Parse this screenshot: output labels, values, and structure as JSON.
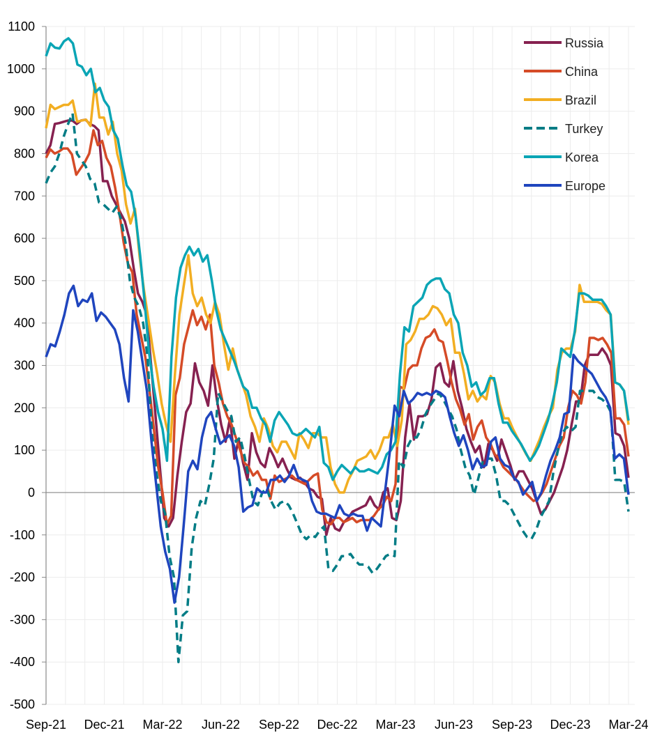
{
  "chart_data": {
    "type": "line",
    "title": "",
    "xlabel": "",
    "ylabel": "",
    "ylim": [
      -500,
      1100
    ],
    "yticks": [
      1100,
      1000,
      900,
      800,
      700,
      600,
      500,
      400,
      300,
      200,
      100,
      0,
      -100,
      -200,
      -300,
      -400,
      -500
    ],
    "ytick_labels": [
      "1100",
      "1000",
      "900",
      "800",
      "700",
      "600",
      "500",
      "400",
      "300",
      "200",
      "100",
      "0",
      "-100",
      "-200",
      "-300",
      "-400",
      "-500"
    ],
    "x_unit": "weeks since Sep-21",
    "xlim": [
      0,
      130
    ],
    "xticks": [
      0,
      13,
      26,
      39,
      52,
      65,
      78,
      91,
      104,
      117,
      130
    ],
    "xtick_labels": [
      "Sep-21",
      "Dec-21",
      "Mar-22",
      "Jun-22",
      "Sep-22",
      "Dec-22",
      "Mar-23",
      "Jun-23",
      "Sep-23",
      "Dec-23",
      "Mar-24"
    ],
    "grid": true,
    "zero_line": true,
    "legend_position": "top-right",
    "series": [
      {
        "name": "Russia",
        "color": "#862150",
        "dash": false,
        "values": [
          800,
          820,
          870,
          872,
          875,
          878,
          878,
          870,
          878,
          880,
          870,
          865,
          855,
          735,
          735,
          700,
          680,
          660,
          640,
          600,
          530,
          470,
          450,
          420,
          300,
          180,
          60,
          -60,
          -80,
          -60,
          40,
          120,
          190,
          210,
          305,
          260,
          240,
          205,
          300,
          220,
          160,
          120,
          175,
          80,
          125,
          70,
          30,
          140,
          95,
          70,
          60,
          105,
          85,
          60,
          80,
          55,
          35,
          30,
          35,
          25,
          10,
          5,
          -10,
          -15,
          -100,
          -60,
          -85,
          -90,
          -70,
          -60,
          -45,
          -40,
          -35,
          -30,
          -10,
          -30,
          -40,
          0,
          10,
          -60,
          -65,
          -20,
          130,
          210,
          125,
          180,
          180,
          185,
          220,
          295,
          305,
          260,
          250,
          310,
          240,
          200,
          150,
          120,
          95,
          110,
          60,
          115,
          100,
          75,
          125,
          95,
          65,
          30,
          50,
          50,
          30,
          10,
          -20,
          -50,
          -40,
          -20,
          0,
          30,
          60,
          100,
          160,
          215,
          215,
          300,
          325,
          325,
          325,
          340,
          325,
          300,
          140,
          135,
          110,
          35
        ]
      },
      {
        "name": "China",
        "color": "#D54B27",
        "dash": false,
        "values": [
          790,
          810,
          800,
          805,
          812,
          812,
          798,
          750,
          765,
          780,
          800,
          855,
          820,
          830,
          790,
          770,
          720,
          660,
          590,
          540,
          520,
          420,
          370,
          320,
          240,
          150,
          60,
          0,
          -75,
          -55,
          230,
          270,
          350,
          390,
          430,
          395,
          415,
          385,
          420,
          300,
          260,
          210,
          180,
          160,
          130,
          100,
          70,
          60,
          40,
          50,
          30,
          30,
          -15,
          40,
          25,
          30,
          35,
          40,
          30,
          25,
          20,
          30,
          40,
          45,
          -40,
          -70,
          -75,
          -60,
          -60,
          -70,
          -65,
          -60,
          -70,
          -65,
          -65,
          -65,
          -55,
          -40,
          -30,
          -10,
          -20,
          20,
          250,
          245,
          290,
          300,
          300,
          340,
          365,
          370,
          385,
          360,
          355,
          310,
          260,
          220,
          195,
          160,
          185,
          125,
          155,
          170,
          130,
          115,
          90,
          80,
          60,
          50,
          40,
          30,
          15,
          0,
          -10,
          -20,
          -15,
          0,
          20,
          50,
          80,
          110,
          130,
          200,
          240,
          230,
          210,
          260,
          365,
          365,
          360,
          365,
          350,
          330,
          175,
          175,
          160,
          85
        ]
      },
      {
        "name": "Brazil",
        "color": "#F2AE22",
        "dash": false,
        "values": [
          860,
          915,
          905,
          910,
          915,
          915,
          925,
          875,
          878,
          880,
          865,
          965,
          885,
          885,
          845,
          875,
          800,
          760,
          680,
          635,
          670,
          560,
          480,
          410,
          340,
          280,
          210,
          160,
          120,
          280,
          420,
          490,
          560,
          470,
          440,
          460,
          420,
          400,
          450,
          420,
          350,
          290,
          340,
          290,
          260,
          230,
          180,
          155,
          120,
          175,
          150,
          110,
          95,
          120,
          120,
          100,
          80,
          140,
          125,
          105,
          140,
          140,
          130,
          130,
          60,
          20,
          0,
          0,
          30,
          50,
          75,
          80,
          85,
          100,
          80,
          100,
          130,
          130,
          160,
          110,
          170,
          350,
          360,
          380,
          410,
          410,
          420,
          440,
          435,
          420,
          395,
          410,
          330,
          330,
          280,
          220,
          240,
          215,
          230,
          220,
          275,
          260,
          210,
          175,
          175,
          150,
          130,
          110,
          90,
          75,
          100,
          125,
          155,
          180,
          200,
          290,
          330,
          340,
          340,
          380,
          490,
          450,
          450,
          450,
          450,
          445,
          430,
          420,
          260,
          255,
          240,
          160
        ]
      },
      {
        "name": "Turkey",
        "color": "#007C85",
        "dash": true,
        "values": [
          730,
          755,
          770,
          800,
          840,
          870,
          895,
          800,
          785,
          770,
          740,
          730,
          685,
          680,
          670,
          660,
          675,
          645,
          590,
          500,
          460,
          440,
          400,
          320,
          140,
          50,
          -20,
          -50,
          -150,
          -200,
          -400,
          -290,
          -280,
          -130,
          -60,
          -20,
          -30,
          20,
          80,
          235,
          215,
          195,
          180,
          120,
          130,
          85,
          30,
          -20,
          -30,
          0,
          10,
          -20,
          -40,
          -25,
          -20,
          -30,
          -50,
          -75,
          -100,
          -110,
          -100,
          -105,
          -90,
          -80,
          -180,
          -185,
          -170,
          -150,
          -150,
          -145,
          -160,
          -170,
          -170,
          -175,
          -190,
          -180,
          -165,
          -150,
          -145,
          -150,
          75,
          60,
          110,
          130,
          130,
          150,
          185,
          205,
          220,
          235,
          220,
          200,
          180,
          150,
          100,
          60,
          40,
          -5,
          35,
          75,
          80,
          80,
          40,
          -20,
          -20,
          -30,
          -50,
          -70,
          -90,
          -105,
          -110,
          -90,
          -60,
          -40,
          -20,
          50,
          100,
          140,
          155,
          145,
          155,
          240,
          240,
          240,
          240,
          225,
          220,
          210,
          190,
          30,
          30,
          25,
          -45
        ]
      },
      {
        "name": "Korea",
        "color": "#0AA5B5",
        "dash": false,
        "values": [
          1030,
          1060,
          1050,
          1048,
          1065,
          1072,
          1060,
          1010,
          1005,
          985,
          1000,
          945,
          955,
          925,
          910,
          855,
          835,
          775,
          725,
          710,
          650,
          560,
          450,
          330,
          250,
          190,
          150,
          75,
          320,
          460,
          530,
          560,
          580,
          560,
          575,
          545,
          560,
          500,
          430,
          385,
          360,
          335,
          310,
          280,
          250,
          240,
          200,
          200,
          175,
          160,
          120,
          170,
          190,
          175,
          160,
          140,
          135,
          140,
          150,
          140,
          130,
          155,
          70,
          60,
          30,
          50,
          65,
          55,
          45,
          60,
          50,
          50,
          55,
          50,
          45,
          60,
          90,
          100,
          120,
          280,
          390,
          380,
          440,
          450,
          460,
          490,
          500,
          505,
          505,
          480,
          470,
          420,
          400,
          330,
          300,
          250,
          260,
          230,
          240,
          270,
          270,
          210,
          165,
          165,
          145,
          130,
          115,
          95,
          75,
          90,
          110,
          140,
          170,
          210,
          260,
          340,
          330,
          320,
          380,
          470,
          470,
          465,
          455,
          455,
          455,
          440,
          420,
          260,
          255,
          240,
          170
        ]
      },
      {
        "name": "Europe",
        "color": "#1F45BE",
        "dash": false,
        "values": [
          320,
          350,
          345,
          380,
          420,
          470,
          488,
          440,
          455,
          450,
          470,
          405,
          425,
          415,
          400,
          385,
          350,
          270,
          215,
          430,
          380,
          310,
          240,
          120,
          20,
          -80,
          -140,
          -180,
          -260,
          -200,
          -80,
          50,
          75,
          55,
          130,
          175,
          190,
          150,
          115,
          125,
          135,
          110,
          60,
          -45,
          -35,
          -30,
          10,
          0,
          0,
          30,
          30,
          40,
          25,
          40,
          65,
          35,
          30,
          25,
          -20,
          -45,
          -50,
          -50,
          -55,
          -60,
          -30,
          -50,
          -55,
          -50,
          -55,
          -55,
          -90,
          -60,
          -70,
          -80,
          10,
          100,
          205,
          180,
          240,
          210,
          220,
          235,
          230,
          235,
          230,
          240,
          235,
          225,
          180,
          140,
          110,
          135,
          100,
          55,
          80,
          60,
          65,
          120,
          130,
          80,
          65,
          60,
          35,
          25,
          -5,
          10,
          25,
          -20,
          0,
          40,
          75,
          100,
          130,
          185,
          190,
          325,
          310,
          300,
          290,
          280,
          260,
          240,
          225,
          200,
          80,
          90,
          80,
          -5
        ]
      }
    ]
  }
}
